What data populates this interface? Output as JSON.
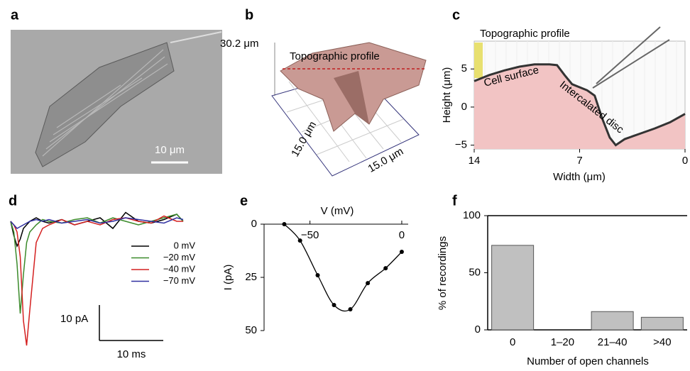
{
  "panel_labels": [
    "a",
    "b",
    "c",
    "d",
    "e",
    "f"
  ],
  "image_a": {
    "scale_bar": "10 μm"
  },
  "image_b": {
    "height": "30.2 μm",
    "profile_label": "Topographic profile",
    "x_size": "15.0 μm",
    "y_size": "15.0 μm"
  },
  "chart_data": [
    {
      "type": "area",
      "annotations": [
        "Topographic profile",
        "Cell surface",
        "Intercalated disc"
      ],
      "x_label": "Width (μm)",
      "y_label": "Height (μm)",
      "x": [
        14,
        13,
        12,
        11,
        10,
        9,
        8.5,
        8,
        7.5,
        7,
        6.5,
        6,
        5.5,
        5,
        4.6,
        4,
        3,
        2,
        1,
        0
      ],
      "values": [
        3.4,
        4.2,
        4.8,
        5.3,
        5.6,
        5.6,
        5.5,
        4.2,
        3.0,
        2.6,
        2.2,
        1.5,
        -1.5,
        -4,
        -5,
        -4.2,
        -3.5,
        -2.8,
        -2,
        -0.9
      ],
      "color": "#f2c4c4",
      "xlim": [
        14,
        0
      ],
      "ylim": [
        -5.5,
        8.65
      ],
      "xticks": [
        14,
        7,
        0
      ],
      "yticks": [
        {
          "value": -5,
          "label": "−5"
        },
        0,
        5
      ]
    },
    {
      "type": "traces",
      "x": [
        0,
        0.5,
        1,
        1.5,
        2,
        2.5,
        3,
        4,
        5,
        6,
        8,
        10,
        12,
        14,
        16,
        18,
        20,
        22,
        24,
        26,
        27
      ],
      "series": [
        {
          "name": "0 mV",
          "color": "#000000",
          "values": [
            0,
            -4,
            -7,
            -5,
            -2,
            -1,
            0,
            1,
            0,
            -0.5,
            0.5,
            -1,
            0,
            1,
            -2,
            2.5,
            0,
            -0.5,
            0.5,
            2,
            0
          ]
        },
        {
          "name": "−20 mV",
          "color": "#3a8a2a",
          "values": [
            0,
            -3,
            -12,
            -26,
            -15,
            -6,
            -3,
            -1,
            0.5,
            0,
            -0.5,
            0.5,
            1,
            -0.5,
            1,
            0,
            -1,
            0,
            1,
            2,
            0
          ]
        },
        {
          "name": "−40 mV",
          "color": "#d42020",
          "values": [
            0,
            -1,
            -3,
            -10,
            -28,
            -35,
            -25,
            -6,
            -2,
            -1,
            0.5,
            -1,
            0,
            -1,
            0.5,
            1,
            0,
            -0.5,
            1.5,
            0,
            0
          ]
        },
        {
          "name": "−70 mV",
          "color": "#3030a0",
          "values": [
            0,
            -1,
            -2,
            -1.5,
            -1,
            -0.5,
            0,
            0.5,
            0,
            0.5,
            -0.5,
            0,
            0.5,
            -0.5,
            0,
            1,
            0.5,
            0,
            -0.5,
            1,
            0.5
          ]
        }
      ],
      "scale_bars": [
        {
          "value": 10,
          "label": "10 pA"
        },
        {
          "value": 10,
          "label": "10 ms"
        }
      ]
    },
    {
      "type": "line",
      "x_label": "V (mV)",
      "y_label": "I (pA)",
      "x": [
        -64,
        -55.4,
        -45.8,
        -36.9,
        -28,
        -18.5,
        -8.8,
        0
      ],
      "values": [
        0,
        7.7,
        24,
        38,
        40,
        27.7,
        20.7,
        13
      ],
      "xlim": [
        -75,
        3.5
      ],
      "ylim": [
        0,
        50
      ],
      "xticks": [
        {
          "value": -50,
          "label": "−50"
        },
        0
      ],
      "yticks": [
        0,
        25,
        50
      ],
      "color": "#000000"
    },
    {
      "type": "bar",
      "x_label": "Number of open channels",
      "y_label": "% of recordings",
      "categories": [
        "0",
        "1–20",
        "21–40",
        ">40"
      ],
      "values": [
        74,
        0,
        16,
        11
      ],
      "color": "#c0c0c0",
      "ylim": [
        0,
        100
      ],
      "yticks": [
        0,
        50,
        100
      ]
    }
  ]
}
